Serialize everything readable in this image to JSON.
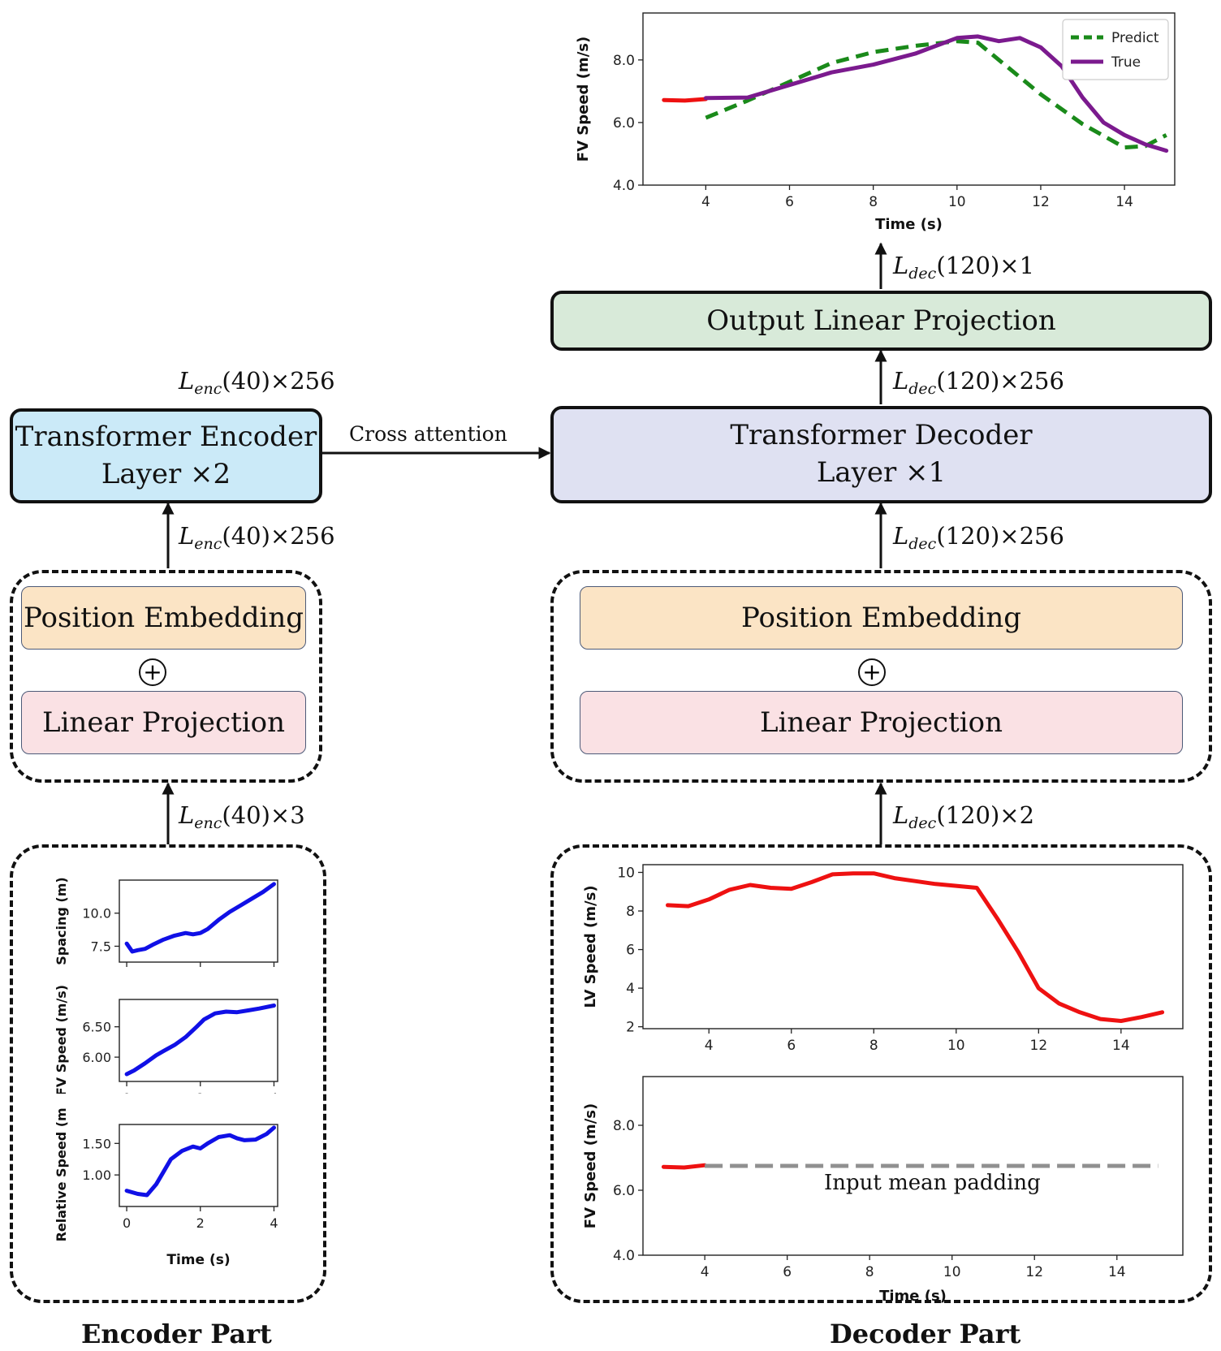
{
  "encoder": {
    "layer_l1": "Transformer Encoder",
    "layer_l2": "Layer ×2",
    "pos_embed": "Position Embedding",
    "lin_proj": "Linear Projection",
    "dim_top": "(40)×256",
    "dim_mid": "(40)×256",
    "dim_in": "(40)×3",
    "dim_sym": "L",
    "dim_sub": "enc",
    "part_label": "Encoder Part"
  },
  "decoder": {
    "layer_l1": "Transformer Decoder",
    "layer_l2": "Layer ×1",
    "pos_embed": "Position Embedding",
    "lin_proj": "Linear Projection",
    "output_proj": "Output Linear Projection",
    "dim_out": "(120)×1",
    "dim_top": "(120)×256",
    "dim_mid": "(120)×256",
    "dim_in": "(120)×2",
    "dim_sym": "L",
    "dim_sub": "dec",
    "part_label": "Decoder Part"
  },
  "cross_attention": "Cross attention",
  "plus_sign": "+",
  "annotation_padding": "Input mean padding",
  "colors": {
    "encoder_layer": "#cbeaf8",
    "decoder_layer": "#dfe1f2",
    "output_proj": "#d8ead9",
    "position_embedding": "#fbe4c5",
    "linear_projection": "#fae1e4",
    "blue_line": "#1010e6",
    "red_line": "#ee1111",
    "green_line": "#1a8a1a",
    "purple_line": "#7b1a8e",
    "gray_dash": "#909090"
  },
  "chart_data": [
    {
      "id": "top_fv",
      "type": "line",
      "xlabel": "Time (s)",
      "ylabel": "FV Speed (m/s)",
      "xlim": [
        2.5,
        15.2
      ],
      "ylim": [
        4.0,
        9.5
      ],
      "xticks": [
        4,
        6,
        8,
        10,
        12,
        14
      ],
      "yticks": [
        4.0,
        6.0,
        8.0
      ],
      "ytick_format": 1,
      "legend": "top-right",
      "series": [
        {
          "name": "",
          "color": "#ee1111",
          "dash": "",
          "x": [
            3.0,
            3.5,
            4.0
          ],
          "y": [
            6.72,
            6.7,
            6.75
          ]
        },
        {
          "name": "Predict",
          "color": "#1a8a1a",
          "dash": "16,9",
          "x": [
            4.0,
            5.0,
            6.0,
            7.0,
            8.0,
            9.0,
            10.0,
            10.5,
            11.0,
            12.0,
            13.0,
            14.0,
            14.5,
            15.0
          ],
          "y": [
            6.15,
            6.7,
            7.3,
            7.9,
            8.25,
            8.45,
            8.6,
            8.55,
            8.0,
            6.9,
            5.95,
            5.2,
            5.25,
            5.6
          ]
        },
        {
          "name": "True",
          "color": "#7b1a8e",
          "dash": "",
          "x": [
            4.0,
            5.0,
            6.0,
            7.0,
            8.0,
            9.0,
            10.0,
            10.5,
            11.0,
            11.5,
            12.0,
            12.5,
            13.0,
            13.5,
            14.0,
            14.5,
            15.0
          ],
          "y": [
            6.78,
            6.8,
            7.2,
            7.6,
            7.85,
            8.2,
            8.7,
            8.75,
            8.6,
            8.7,
            8.4,
            7.8,
            6.8,
            6.0,
            5.6,
            5.3,
            5.1
          ]
        }
      ]
    },
    {
      "id": "enc_spacing",
      "type": "line",
      "xlabel": "",
      "ylabel": "Spacing (m)",
      "xlim": [
        -0.2,
        4.1
      ],
      "ylim": [
        6.3,
        12.5
      ],
      "xticks": [
        0,
        2,
        4
      ],
      "yticks": [
        7.5,
        10.0
      ],
      "ytick_format": 1,
      "series": [
        {
          "name": "",
          "color": "#1010e6",
          "dash": "",
          "x": [
            0.0,
            0.15,
            0.3,
            0.5,
            0.7,
            1.0,
            1.3,
            1.6,
            1.8,
            2.0,
            2.2,
            2.5,
            2.8,
            3.1,
            3.4,
            3.7,
            4.0
          ],
          "y": [
            7.7,
            7.1,
            7.2,
            7.3,
            7.6,
            8.0,
            8.3,
            8.5,
            8.4,
            8.5,
            8.8,
            9.5,
            10.1,
            10.6,
            11.1,
            11.6,
            12.2
          ]
        }
      ]
    },
    {
      "id": "enc_fv",
      "type": "line",
      "xlabel": "",
      "ylabel": "FV Speed (m/s)",
      "xlim": [
        -0.2,
        4.1
      ],
      "ylim": [
        5.6,
        6.95
      ],
      "xticks": [
        0,
        2,
        4
      ],
      "yticks": [
        6.0,
        6.5
      ],
      "ytick_format": 2,
      "series": [
        {
          "name": "",
          "color": "#1010e6",
          "dash": "",
          "x": [
            0.0,
            0.2,
            0.5,
            0.8,
            1.0,
            1.3,
            1.6,
            1.9,
            2.1,
            2.4,
            2.7,
            3.0,
            3.3,
            3.6,
            4.0
          ],
          "y": [
            5.72,
            5.78,
            5.9,
            6.03,
            6.1,
            6.2,
            6.33,
            6.5,
            6.62,
            6.72,
            6.75,
            6.74,
            6.77,
            6.8,
            6.85
          ]
        }
      ]
    },
    {
      "id": "enc_rel",
      "type": "line",
      "xlabel": "Time (s)",
      "ylabel": "Relative Speed (m/s)",
      "xlim": [
        -0.2,
        4.1
      ],
      "ylim": [
        0.5,
        1.8
      ],
      "xticks": [
        0,
        2,
        4
      ],
      "yticks": [
        1.0,
        1.5
      ],
      "ytick_format": 2,
      "series": [
        {
          "name": "",
          "color": "#1010e6",
          "dash": "",
          "x": [
            0.0,
            0.3,
            0.55,
            0.8,
            1.0,
            1.2,
            1.5,
            1.8,
            2.0,
            2.2,
            2.5,
            2.8,
            3.0,
            3.2,
            3.5,
            3.8,
            4.0
          ],
          "y": [
            0.75,
            0.7,
            0.68,
            0.85,
            1.05,
            1.25,
            1.38,
            1.45,
            1.42,
            1.5,
            1.6,
            1.63,
            1.58,
            1.55,
            1.56,
            1.65,
            1.75
          ]
        }
      ]
    },
    {
      "id": "dec_lv",
      "type": "line",
      "xlabel": "",
      "ylabel": "LV Speed (m/s)",
      "xlim": [
        2.4,
        15.5
      ],
      "ylim": [
        1.9,
        10.4
      ],
      "xticks": [
        4,
        6,
        8,
        10,
        12,
        14
      ],
      "yticks": [
        2,
        4,
        6,
        8,
        10
      ],
      "ytick_format": 0,
      "series": [
        {
          "name": "",
          "color": "#ee1111",
          "dash": "",
          "x": [
            3.0,
            3.5,
            4.0,
            4.5,
            5.0,
            5.5,
            6.0,
            6.5,
            7.0,
            7.5,
            8.0,
            8.5,
            9.0,
            9.5,
            10.0,
            10.5,
            11.0,
            11.5,
            12.0,
            12.5,
            13.0,
            13.5,
            14.0,
            14.5,
            15.0
          ],
          "y": [
            8.3,
            8.25,
            8.6,
            9.1,
            9.35,
            9.2,
            9.15,
            9.5,
            9.9,
            9.95,
            9.95,
            9.7,
            9.55,
            9.4,
            9.3,
            9.2,
            7.6,
            5.9,
            4.0,
            3.2,
            2.75,
            2.4,
            2.3,
            2.5,
            2.75
          ]
        }
      ]
    },
    {
      "id": "dec_fv",
      "type": "line",
      "xlabel": "Time (s)",
      "ylabel": "FV Speed (m/s)",
      "xlim": [
        2.5,
        15.6
      ],
      "ylim": [
        4.0,
        9.5
      ],
      "xticks": [
        4,
        6,
        8,
        10,
        12,
        14
      ],
      "yticks": [
        4.0,
        6.0,
        8.0
      ],
      "ytick_format": 1,
      "series": [
        {
          "name": "",
          "color": "#ee1111",
          "dash": "",
          "x": [
            3.0,
            3.5,
            4.0
          ],
          "y": [
            6.72,
            6.7,
            6.77
          ]
        },
        {
          "name": "",
          "color": "#909090",
          "dash": "22,9",
          "x": [
            4.0,
            15.0
          ],
          "y": [
            6.75,
            6.75
          ]
        }
      ]
    }
  ]
}
